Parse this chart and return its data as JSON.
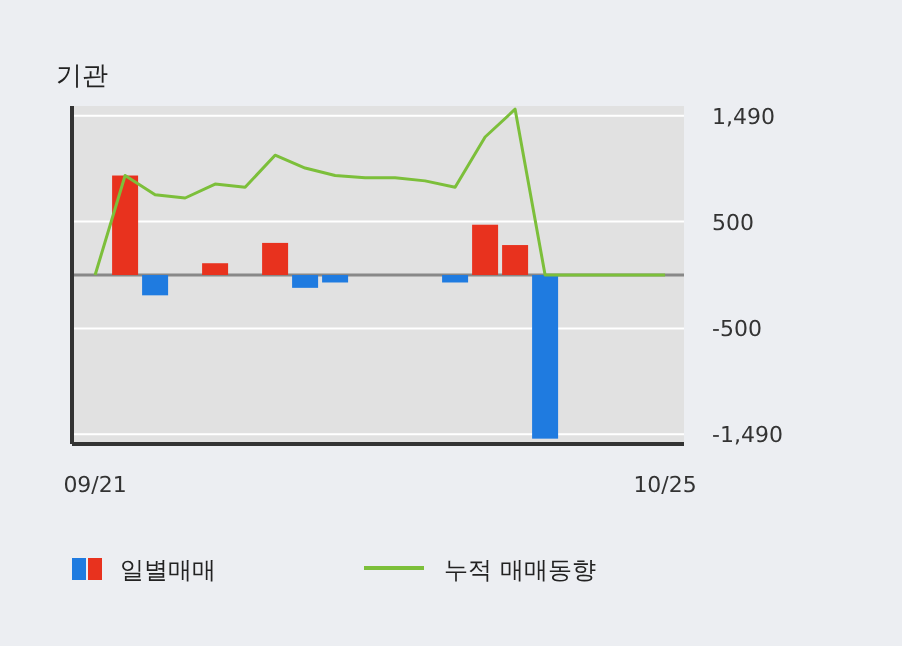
{
  "chart_data": {
    "type": "bar",
    "title": "기관",
    "categories": [
      "09/21",
      null,
      null,
      null,
      null,
      null,
      null,
      null,
      null,
      null,
      null,
      null,
      null,
      null,
      null,
      null,
      null,
      null,
      null,
      "10/25"
    ],
    "series": [
      {
        "name": "일별매매",
        "values": [
          0,
          930,
          -190,
          0,
          110,
          0,
          300,
          -120,
          -70,
          0,
          0,
          0,
          -70,
          470,
          280,
          -1530,
          0,
          0,
          0,
          0
        ],
        "colors": [
          "#e8321e",
          "#e8321e",
          "#1f7be0",
          "#e8321e",
          "#e8321e",
          "#e8321e",
          "#e8321e",
          "#1f7be0",
          "#1f7be0",
          "#e8321e",
          "#e8321e",
          "#e8321e",
          "#1f7be0",
          "#e8321e",
          "#e8321e",
          "#1f7be0",
          "#e8321e",
          "#e8321e",
          "#e8321e",
          "#e8321e"
        ]
      },
      {
        "name": "누적 매매동향",
        "type": "line",
        "color": "#7cbf3a",
        "values": [
          0,
          930,
          750,
          720,
          850,
          820,
          1120,
          1000,
          930,
          910,
          910,
          880,
          820,
          1290,
          1550,
          0,
          0,
          0,
          0,
          0
        ]
      }
    ],
    "ylim": [
      -1580,
      1580
    ],
    "yticks": [
      {
        "value": 1490,
        "label": "1,490"
      },
      {
        "value": 500,
        "label": "500"
      },
      {
        "value": -500,
        "label": "-500"
      },
      {
        "value": -1490,
        "label": "-1,490"
      }
    ],
    "grid": "y",
    "legend": "bottom"
  }
}
